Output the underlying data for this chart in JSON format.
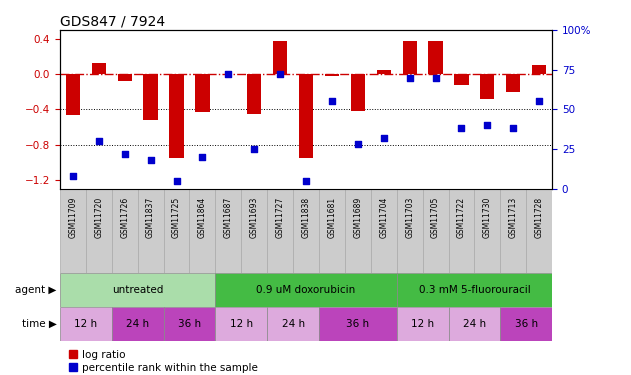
{
  "title": "GDS847 / 7924",
  "samples": [
    "GSM11709",
    "GSM11720",
    "GSM11726",
    "GSM11837",
    "GSM11725",
    "GSM11864",
    "GSM11687",
    "GSM11693",
    "GSM11727",
    "GSM11838",
    "GSM11681",
    "GSM11689",
    "GSM11704",
    "GSM11703",
    "GSM11705",
    "GSM11722",
    "GSM11730",
    "GSM11713",
    "GSM11728"
  ],
  "log_ratio": [
    -0.47,
    0.12,
    -0.08,
    -0.52,
    -0.95,
    -0.43,
    0.0,
    -0.45,
    0.37,
    -0.95,
    -0.02,
    -0.42,
    0.05,
    0.38,
    0.37,
    -0.12,
    -0.28,
    -0.2,
    0.1
  ],
  "percentile": [
    8,
    30,
    22,
    18,
    5,
    20,
    72,
    25,
    72,
    5,
    55,
    28,
    32,
    70,
    70,
    38,
    40,
    38,
    55
  ],
  "bar_color": "#cc0000",
  "dot_color": "#0000cc",
  "agent_groups": [
    {
      "label": "untreated",
      "start": 0,
      "end": 6,
      "color": "#aaddaa"
    },
    {
      "label": "0.9 uM doxorubicin",
      "start": 6,
      "end": 13,
      "color": "#44bb44"
    },
    {
      "label": "0.3 mM 5-fluorouracil",
      "start": 13,
      "end": 19,
      "color": "#44bb44"
    }
  ],
  "time_groups": [
    {
      "label": "12 h",
      "start": 0,
      "end": 2,
      "color": "#ddaadd"
    },
    {
      "label": "24 h",
      "start": 2,
      "end": 4,
      "color": "#bb44bb"
    },
    {
      "label": "36 h",
      "start": 4,
      "end": 6,
      "color": "#bb44bb"
    },
    {
      "label": "12 h",
      "start": 6,
      "end": 8,
      "color": "#ddaadd"
    },
    {
      "label": "24 h",
      "start": 8,
      "end": 10,
      "color": "#ddaadd"
    },
    {
      "label": "36 h",
      "start": 10,
      "end": 13,
      "color": "#bb44bb"
    },
    {
      "label": "12 h",
      "start": 13,
      "end": 15,
      "color": "#ddaadd"
    },
    {
      "label": "24 h",
      "start": 15,
      "end": 17,
      "color": "#ddaadd"
    },
    {
      "label": "36 h",
      "start": 17,
      "end": 19,
      "color": "#bb44bb"
    }
  ],
  "ylim_left": [
    -1.3,
    0.5
  ],
  "ylim_right": [
    0,
    100
  ],
  "yticks_left": [
    -1.2,
    -0.8,
    -0.4,
    0.0,
    0.4
  ],
  "yticks_right": [
    0,
    25,
    50,
    75,
    100
  ],
  "agent_label": "agent",
  "time_label": "time",
  "legend_bar": "log ratio",
  "legend_dot": "percentile rank within the sample",
  "sample_box_color": "#cccccc",
  "xlim": [
    -0.5,
    18.5
  ]
}
